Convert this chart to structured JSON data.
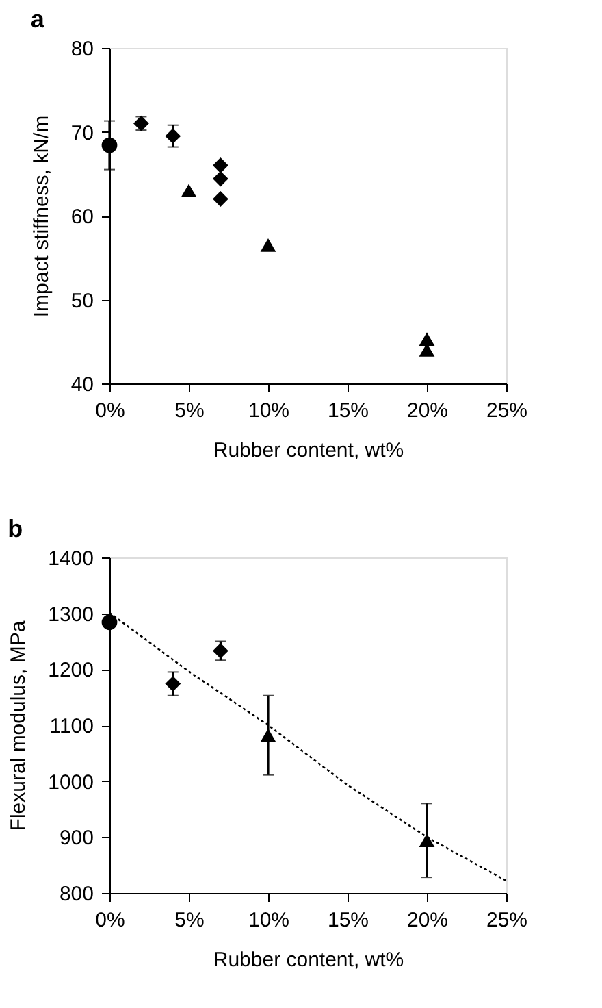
{
  "chart_data": [
    {
      "type": "scatter",
      "title": "a",
      "xlabel": "Rubber content, wt%",
      "ylabel": "Impact stiffness, kN/m",
      "xlim": [
        0,
        25
      ],
      "xticks": [
        {
          "value": 0,
          "label": "0%"
        },
        {
          "value": 5,
          "label": "5%"
        },
        {
          "value": 10,
          "label": "10%"
        },
        {
          "value": 15,
          "label": "15%"
        },
        {
          "value": 20,
          "label": "20%"
        },
        {
          "value": 25,
          "label": "25%"
        }
      ],
      "ylim": [
        40,
        80
      ],
      "yticks": [
        40,
        50,
        60,
        70,
        80
      ],
      "series": [
        {
          "color": "#000000",
          "marker": "circle",
          "x": [
            0
          ],
          "values": [
            68.4
          ],
          "errors": [
            2.9
          ]
        },
        {
          "color": "#000000",
          "marker": "diamond",
          "x": [
            2,
            4,
            7,
            7,
            7
          ],
          "values": [
            71.0,
            69.5,
            66.0,
            64.4,
            62.0
          ],
          "errors": [
            0.8,
            1.3,
            null,
            null,
            null
          ]
        },
        {
          "color": "#000000",
          "marker": "triangle",
          "x": [
            5,
            10,
            20,
            20
          ],
          "values": [
            63.0,
            56.5,
            45.3,
            44.0
          ]
        }
      ]
    },
    {
      "type": "scatter",
      "title": "b",
      "xlabel": "Rubber content, wt%",
      "ylabel": "Flexural modulus, MPa",
      "xlim": [
        0,
        25
      ],
      "xticks": [
        {
          "value": 0,
          "label": "0%"
        },
        {
          "value": 5,
          "label": "5%"
        },
        {
          "value": 10,
          "label": "10%"
        },
        {
          "value": 15,
          "label": "15%"
        },
        {
          "value": 20,
          "label": "20%"
        },
        {
          "value": 25,
          "label": "25%"
        }
      ],
      "ylim": [
        800,
        1400
      ],
      "yticks": [
        800,
        900,
        1000,
        1100,
        1200,
        1300,
        1400
      ],
      "series": [
        {
          "type": "line",
          "color": "#000000",
          "marker": "none",
          "line_style": "dotted",
          "x": [
            0,
            5,
            10,
            15,
            20,
            25
          ],
          "values": [
            1301,
            1196,
            1100,
            993,
            900,
            822
          ]
        },
        {
          "color": "#000000",
          "marker": "circle",
          "x": [
            0
          ],
          "values": [
            1284
          ]
        },
        {
          "color": "#000000",
          "marker": "diamond",
          "x": [
            4,
            7
          ],
          "values": [
            1174,
            1233
          ],
          "errors": [
            21,
            17
          ]
        },
        {
          "color": "#000000",
          "marker": "triangle",
          "x": [
            10,
            20
          ],
          "values": [
            1082,
            894
          ],
          "errors": [
            71,
            66
          ]
        }
      ]
    }
  ]
}
